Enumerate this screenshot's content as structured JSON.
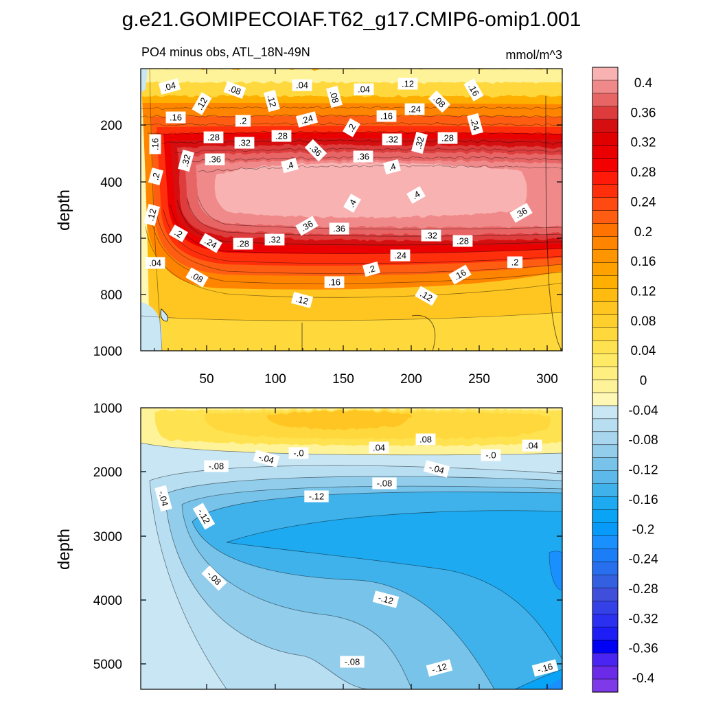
{
  "chart_data": {
    "type": "heatmap",
    "title": "g.e21.GOMIPECOIAF.T62_g17.CMIP6-omip1.001",
    "subtitle_left": "PO4 minus obs, ATL_18N-49N",
    "units": "mmol/m^3",
    "ylabel": "depth",
    "x_tick_labels": [
      "50",
      "100",
      "150",
      "200",
      "250",
      "300"
    ],
    "xlim": [
      0,
      311
    ],
    "colorbar": {
      "levels": [
        -0.4,
        -0.38,
        -0.36,
        -0.34,
        -0.32,
        -0.3,
        -0.28,
        -0.26,
        -0.24,
        -0.22,
        -0.2,
        -0.18,
        -0.16,
        -0.14,
        -0.12,
        -0.1,
        -0.08,
        -0.06,
        -0.04,
        -0.02,
        0,
        0.02,
        0.04,
        0.06,
        0.08,
        0.1,
        0.12,
        0.14,
        0.16,
        0.18,
        0.2,
        0.22,
        0.24,
        0.26,
        0.28,
        0.3,
        0.32,
        0.34,
        0.36,
        0.38,
        0.4
      ],
      "tick_labels": [
        "0.4",
        "0.36",
        "0.32",
        "0.28",
        "0.24",
        "0.2",
        "0.16",
        "0.12",
        "0.08",
        "0.04",
        "0",
        "-0.04",
        "-0.08",
        "-0.12",
        "-0.16",
        "-0.2",
        "-0.24",
        "-0.28",
        "-0.32",
        "-0.36",
        "-0.4"
      ],
      "colors": [
        "#f9b2b2",
        "#f08a8a",
        "#e86565",
        "#de3c3c",
        "#d50f0f",
        "#e00000",
        "#ea0000",
        "#f50000",
        "#ff1a0a",
        "#ff2f0c",
        "#ff4a12",
        "#ff5e12",
        "#ff7300",
        "#ff8500",
        "#ff9500",
        "#ffa200",
        "#ffaf00",
        "#ffbb10",
        "#ffc520",
        "#ffcf2e",
        "#ffd83c",
        "#ffe24f",
        "#ffea66",
        "#ffef80",
        "#fff39a",
        "#fff7b4",
        "#c9e6f5",
        "#b8def2",
        "#a8d6ef",
        "#92cdec",
        "#78c3ea",
        "#5cb9ea",
        "#3fb2ec",
        "#1eaaf0",
        "#0aa4f6",
        "#089af8",
        "#1a90ff",
        "#1c7ef6",
        "#286ff0",
        "#3360e0",
        "#3f4fdc",
        "#3341e6",
        "#2a2ff0",
        "#1d1df5",
        "#0000f5",
        "#4a24f0",
        "#6a2ae8",
        "#7e3ae8"
      ]
    },
    "panels": [
      {
        "name": "upper",
        "y_ticks": [
          "200",
          "400",
          "600",
          "800",
          "1000"
        ],
        "ylim": [
          0,
          1000
        ],
        "contour_labels": [
          ".04",
          ".08",
          ".12",
          ".04",
          ".12",
          ".08",
          ".04",
          ".12",
          ".08",
          ".16",
          ".16",
          ".24",
          ".2",
          ".24",
          ".2",
          ".16",
          ".24",
          ".16",
          ".28",
          ".32",
          ".28",
          ".36",
          ".32",
          ".32",
          ".28",
          ".32",
          ".36",
          ".4",
          ".36",
          ".4",
          ".2",
          ".4",
          ".4",
          ".36",
          ".12",
          ".2",
          ".24",
          ".28",
          ".32",
          ".36",
          ".36",
          ".32",
          ".28",
          ".04",
          ".08",
          ".2",
          ".24",
          ".2",
          ".16",
          ".16",
          ".12",
          ".12"
        ]
      },
      {
        "name": "lower",
        "y_ticks": [
          "1000",
          "2000",
          "3000",
          "4000",
          "5000"
        ],
        "ylim": [
          1000,
          5400
        ],
        "contour_labels": [
          ".08",
          ".04",
          ".04",
          "-.0",
          "-.04",
          "-.0",
          "-.04",
          "-.08",
          "-.08",
          "-.12",
          "-.04",
          "-.12",
          "-.08",
          "-.12",
          "-.08",
          "-.12",
          "-.16"
        ]
      }
    ]
  }
}
